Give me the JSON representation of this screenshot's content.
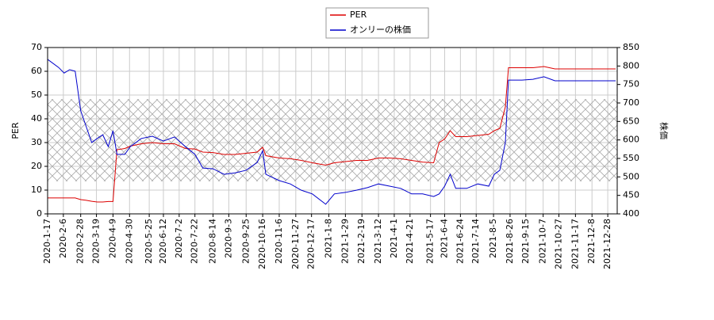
{
  "chart_data": {
    "type": "line",
    "legend": "top",
    "grid": true,
    "y_label": "PER",
    "y2_label": "株価",
    "hatch_band": [
      13.7,
      48.3
    ],
    "xlim": [
      "2020-1-17",
      "2022-1-9"
    ],
    "ylim": [
      0,
      70
    ],
    "yticks": [
      0,
      10,
      20,
      30,
      40,
      50,
      60,
      70
    ],
    "y2lim": [
      400,
      850
    ],
    "y2ticks": [
      400,
      450,
      500,
      550,
      600,
      650,
      700,
      750,
      800,
      850
    ],
    "xticks": [
      "2020-1-17",
      "2020-2-6",
      "2020-2-28",
      "2020-3-19",
      "2020-4-9",
      "2020-4-30",
      "2020-5-25",
      "2020-6-12",
      "2020-7-2",
      "2020-7-22",
      "2020-8-14",
      "2020-9-3",
      "2020-9-25",
      "2020-10-16",
      "2020-11-6",
      "2020-11-27",
      "2020-12-17",
      "2021-1-8",
      "2021-1-29",
      "2021-2-19",
      "2021-3-12",
      "2021-4-1",
      "2021-4-21",
      "2021-5-17",
      "2021-6-4",
      "2021-6-24",
      "2021-7-14",
      "2021-8-5",
      "2021-8-26",
      "2021-9-15",
      "2021-10-7",
      "2021-10-27",
      "2021-11-17",
      "2021-12-8",
      "2021-12-28"
    ],
    "x": [
      "2020-1-17",
      "2020-1-31",
      "2020-2-7",
      "2020-2-14",
      "2020-2-21",
      "2020-2-28",
      "2020-3-6",
      "2020-3-13",
      "2020-3-20",
      "2020-3-27",
      "2020-4-3",
      "2020-4-9",
      "2020-4-14",
      "2020-4-24",
      "2020-5-1",
      "2020-5-15",
      "2020-5-29",
      "2020-6-12",
      "2020-6-26",
      "2020-7-10",
      "2020-7-22",
      "2020-8-1",
      "2020-8-14",
      "2020-8-28",
      "2020-9-11",
      "2020-9-25",
      "2020-10-9",
      "2020-10-16",
      "2020-10-20",
      "2020-11-6",
      "2020-11-20",
      "2020-12-4",
      "2020-12-18",
      "2021-1-4",
      "2021-1-15",
      "2021-1-29",
      "2021-2-12",
      "2021-2-26",
      "2021-3-12",
      "2021-3-26",
      "2021-4-9",
      "2021-4-23",
      "2021-5-7",
      "2021-5-21",
      "2021-5-28",
      "2021-6-4",
      "2021-6-11",
      "2021-6-18",
      "2021-7-2",
      "2021-7-16",
      "2021-7-30",
      "2021-8-6",
      "2021-8-13",
      "2021-8-20",
      "2021-8-24",
      "2021-9-10",
      "2021-9-24",
      "2021-10-8",
      "2021-10-22",
      "2021-11-12",
      "2021-12-3",
      "2021-12-24",
      "2022-1-7"
    ],
    "series": [
      {
        "name": "PER",
        "color": "#dd0000",
        "axis": "y",
        "values": [
          6.7,
          6.7,
          6.7,
          6.7,
          6.7,
          6.0,
          5.7,
          5.3,
          5.0,
          5.0,
          5.2,
          5.2,
          27,
          27.5,
          28.5,
          29.5,
          30,
          29.5,
          29.5,
          27.5,
          27.3,
          26,
          25.8,
          25,
          25,
          25.5,
          26,
          28,
          24.5,
          23.5,
          23.2,
          22.5,
          21.5,
          20.5,
          21.5,
          22,
          22.5,
          22.5,
          23.5,
          23.5,
          23.2,
          22.5,
          21.8,
          21.5,
          30,
          31.5,
          35,
          32.5,
          32.5,
          33,
          33.5,
          35,
          36,
          45,
          61.5,
          61.5,
          61.5,
          62,
          61,
          61,
          61,
          61,
          61
        ]
      },
      {
        "name": "オンリーの株価",
        "color": "#0000cc",
        "axis": "y2",
        "values": [
          818,
          796,
          781,
          790,
          786,
          679,
          636,
          593,
          604,
          614,
          582,
          625,
          561,
          561,
          582,
          604,
          610,
          597,
          608,
          582,
          561,
          524,
          522,
          507,
          511,
          518,
          539,
          571,
          507,
          490,
          481,
          464,
          454,
          426,
          454,
          458,
          464,
          471,
          481,
          475,
          469,
          454,
          454,
          447,
          454,
          475,
          507,
          469,
          469,
          481,
          475,
          507,
          518,
          593,
          762,
          762,
          764,
          771,
          760,
          760,
          760,
          760,
          760
        ]
      }
    ]
  }
}
